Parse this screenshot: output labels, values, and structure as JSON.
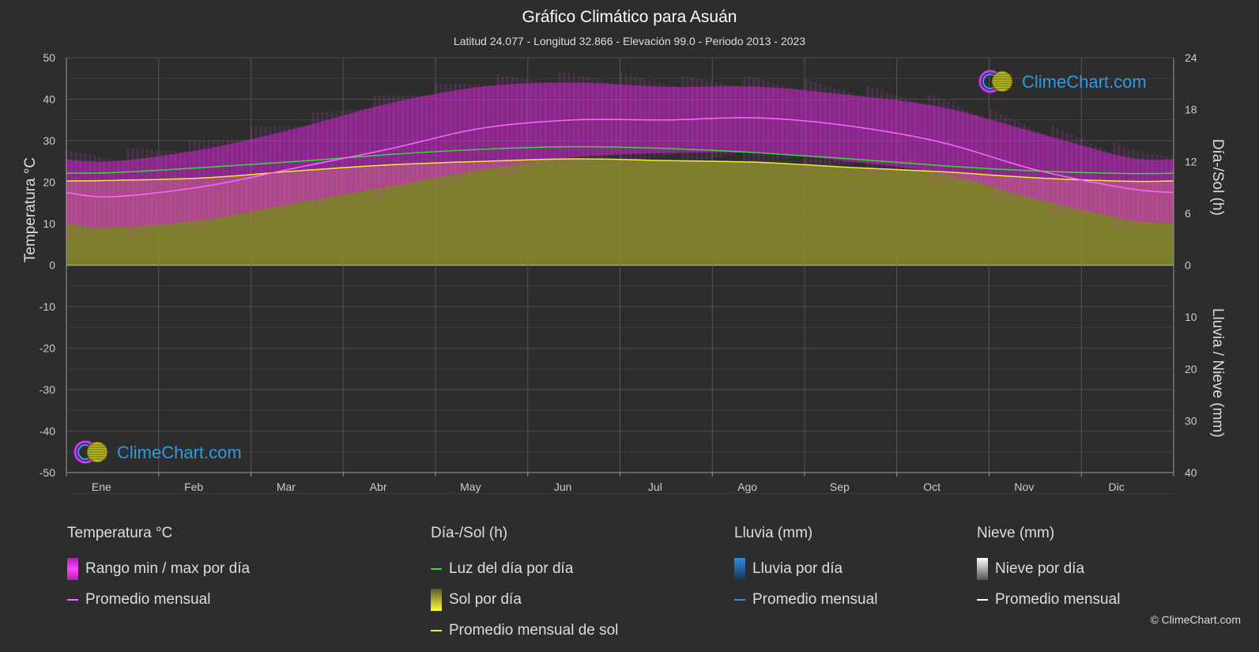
{
  "header": {
    "title": "Gráfico Climático para Asuán",
    "subtitle": "Latitud 24.077 - Longitud 32.866 - Elevación 99.0 - Periodo 2013 - 2023"
  },
  "watermark": {
    "text": "ClimeChart.com"
  },
  "copyright": "© ClimeChart.com",
  "colors": {
    "background": "#2d2d2d",
    "temp_range": "#cc22cc",
    "temp_avg": "#ff66ff",
    "daylight": "#33dd33",
    "sunshine_fill": "#8c8c2c",
    "sunshine_avg": "#eeee33",
    "rain": "#2d8fe0",
    "snow": "#ffffff",
    "brand_blue": "#2d9be0"
  },
  "legend": {
    "temperature": {
      "heading": "Temperatura °C",
      "range": "Rango min / max por día",
      "avg": "Promedio mensual"
    },
    "daylight": {
      "heading": "Día-/Sol (h)",
      "daylight": "Luz del día por día",
      "sunshine": "Sol por día",
      "sunshine_avg": "Promedio mensual de sol"
    },
    "rain": {
      "heading": "Lluvia (mm)",
      "per_day": "Lluvia por día",
      "avg": "Promedio mensual"
    },
    "snow": {
      "heading": "Nieve (mm)",
      "per_day": "Nieve por día",
      "avg": "Promedio mensual"
    }
  },
  "chart_data": {
    "type": "area",
    "categories": [
      "Ene",
      "Feb",
      "Mar",
      "Abr",
      "May",
      "Jun",
      "Jul",
      "Ago",
      "Sep",
      "Oct",
      "Nov",
      "Dic"
    ],
    "left_axis": {
      "label": "Temperatura °C",
      "range": [
        -50,
        50
      ],
      "ticks": [
        50,
        40,
        30,
        20,
        10,
        0,
        -10,
        -20,
        -30,
        -40,
        -50
      ]
    },
    "right_axis_top": {
      "label": "Día-/Sol (h)",
      "range": [
        0,
        24
      ],
      "ticks": [
        24,
        18,
        12,
        6,
        0
      ]
    },
    "right_axis_bottom": {
      "label": "Lluvia / Nieve (mm)",
      "range": [
        0,
        40
      ],
      "ticks": [
        10,
        20,
        30,
        40
      ]
    },
    "grid": true,
    "series": [
      {
        "name": "Rango min / max por día",
        "kind": "band",
        "min": [
          9,
          11,
          15,
          19,
          23,
          26,
          27,
          27,
          25,
          22,
          16,
          11
        ],
        "max": [
          25,
          28,
          33,
          39,
          43,
          44,
          43,
          43,
          41,
          38,
          32,
          26
        ]
      },
      {
        "name": "Promedio mensual",
        "kind": "line",
        "axis": "left",
        "values": [
          16.5,
          19,
          23.5,
          28,
          33,
          35,
          35,
          35.5,
          33.5,
          29.5,
          23,
          18.5
        ]
      },
      {
        "name": "Luz del día por día",
        "kind": "line",
        "axis": "right_top",
        "values": [
          10.7,
          11.3,
          12.0,
          12.8,
          13.4,
          13.7,
          13.5,
          13.0,
          12.3,
          11.5,
          10.9,
          10.6
        ]
      },
      {
        "name": "Sol por día",
        "kind": "area",
        "axis": "right_top",
        "values": [
          9.8,
          10.1,
          10.9,
          11.6,
          12.0,
          12.3,
          12.1,
          11.9,
          11.3,
          10.8,
          10.1,
          9.7
        ]
      },
      {
        "name": "Promedio mensual de sol",
        "kind": "line",
        "axis": "right_top",
        "values": [
          9.8,
          10.1,
          10.9,
          11.6,
          12.0,
          12.3,
          12.1,
          11.9,
          11.3,
          10.8,
          10.1,
          9.7
        ]
      },
      {
        "name": "Lluvia por día",
        "kind": "bar",
        "axis": "right_bottom",
        "values": [
          0,
          0,
          0,
          0,
          0,
          0,
          0,
          0,
          0,
          0,
          0,
          0
        ]
      }
    ]
  }
}
